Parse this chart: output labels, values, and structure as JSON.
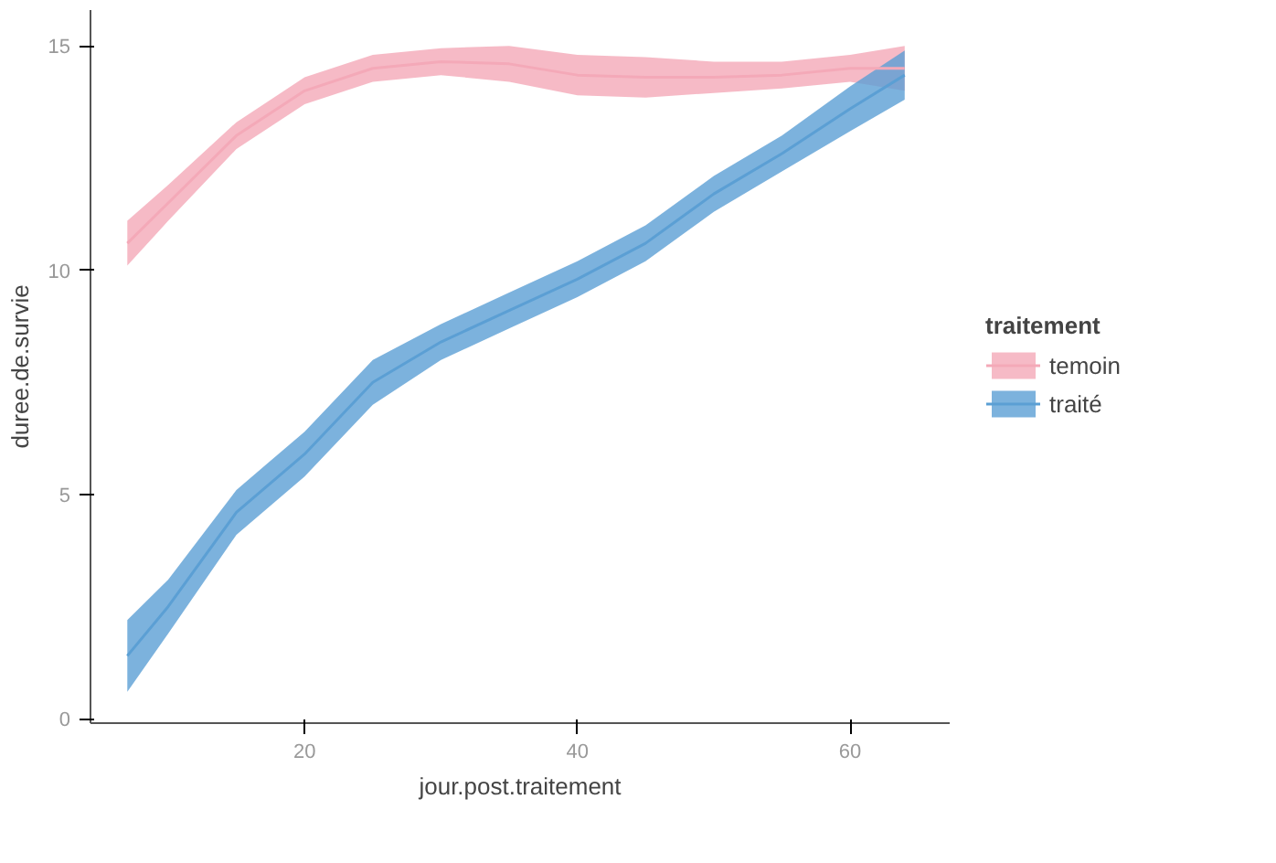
{
  "chart_data": {
    "type": "line",
    "xlabel": "jour.post.traitement",
    "ylabel": "duree.de.survie",
    "legend_title": "traitement",
    "x": [
      7,
      10,
      15,
      20,
      25,
      30,
      35,
      40,
      45,
      50,
      55,
      60,
      64
    ],
    "series": [
      {
        "name": "temoin",
        "color": "#f4a9b8",
        "values": [
          10.6,
          11.5,
          13.0,
          14.0,
          14.5,
          14.65,
          14.6,
          14.35,
          14.3,
          14.3,
          14.35,
          14.5,
          14.5
        ],
        "lower": [
          10.1,
          11.1,
          12.7,
          13.7,
          14.2,
          14.35,
          14.2,
          13.9,
          13.85,
          13.95,
          14.05,
          14.2,
          14.0
        ],
        "upper": [
          11.1,
          11.9,
          13.3,
          14.3,
          14.8,
          14.95,
          15.0,
          14.8,
          14.75,
          14.65,
          14.65,
          14.8,
          15.0
        ]
      },
      {
        "name": "traité",
        "color": "#5b9fd4",
        "values": [
          1.4,
          2.5,
          4.6,
          5.9,
          7.5,
          8.4,
          9.1,
          9.8,
          10.6,
          11.7,
          12.6,
          13.6,
          14.35
        ],
        "lower": [
          0.6,
          1.9,
          4.1,
          5.4,
          7.0,
          8.0,
          8.7,
          9.4,
          10.2,
          11.3,
          12.2,
          13.1,
          13.8
        ],
        "upper": [
          2.2,
          3.1,
          5.1,
          6.4,
          8.0,
          8.8,
          9.5,
          10.2,
          11.0,
          12.1,
          13.0,
          14.1,
          14.9
        ]
      }
    ],
    "xlim": [
      4.3,
      67.3
    ],
    "ylim": [
      -0.1,
      15.8
    ],
    "xticks": [
      20,
      40,
      60
    ],
    "yticks": [
      0,
      5,
      10,
      15
    ],
    "grid": false,
    "legend": "right",
    "marker": "none",
    "line_style": "solid"
  }
}
